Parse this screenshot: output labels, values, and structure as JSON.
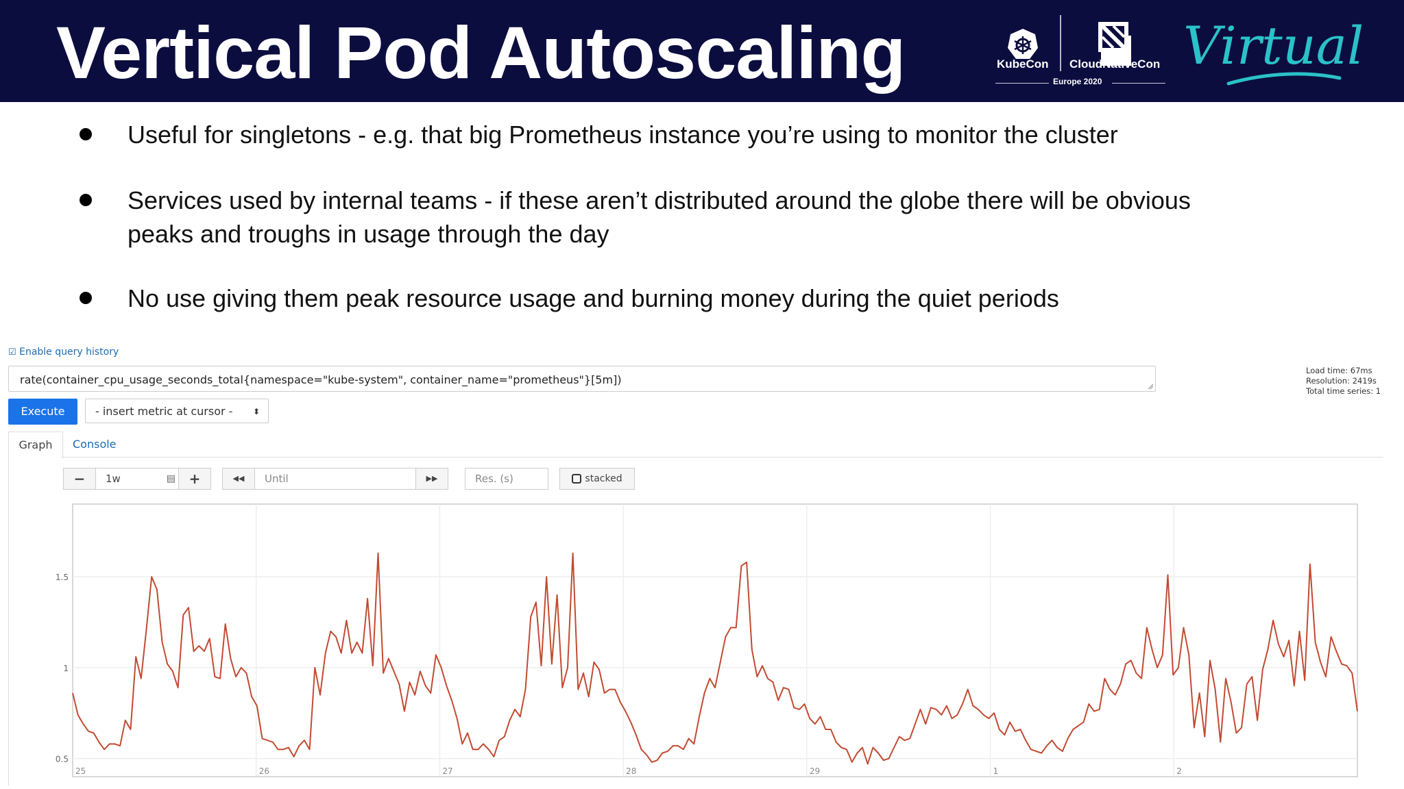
{
  "slide": {
    "title": "Vertical Pod Autoscaling",
    "logos": {
      "kubecon": "KubeCon",
      "cloudnativecon": "CloudNativeCon",
      "event": "Europe 2020",
      "virtual": "Virtual"
    },
    "bullets": [
      "Useful for singletons - e.g. that big Prometheus instance you’re using to monitor the cluster",
      "Services used by internal teams - if these aren’t distributed around the globe there will be obvious peaks and troughs in usage through the day",
      "No use giving them peak resource usage and burning money during the quiet periods"
    ],
    "colors": {
      "header_bg": "#0c0d3f",
      "virtual_text": "#2ac2c8",
      "series": "#c24a32"
    }
  },
  "prometheus": {
    "query_history_label": "Enable query history",
    "query": "rate(container_cpu_usage_seconds_total{namespace=\"kube-system\", container_name=\"prometheus\"}[5m])",
    "execute_label": "Execute",
    "insert_metric_label": "- insert metric at cursor -",
    "stats": [
      "Load time: 67ms",
      "Resolution: 2419s",
      "Total time series: 1"
    ],
    "tabs": [
      "Graph",
      "Console"
    ],
    "controls": {
      "minus": "−",
      "range": "1w",
      "plus": "+",
      "back": "◀◀",
      "until_placeholder": "Until",
      "forward": "▶▶",
      "resolution_placeholder": "Res. (s)",
      "stacked": "stacked"
    }
  },
  "chart_data": {
    "type": "line",
    "x_ticks": [
      "25",
      "26",
      "27",
      "28",
      "29",
      "1",
      "2"
    ],
    "y_ticks": [
      "1.5",
      "1",
      "0.5"
    ],
    "ylim": [
      0.4,
      1.9
    ],
    "xlim": [
      0,
      7
    ],
    "grid": true,
    "series": [
      {
        "color": "#c24a32",
        "values": [
          0.86,
          0.74,
          0.69,
          0.65,
          0.64,
          0.59,
          0.55,
          0.58,
          0.58,
          0.57,
          0.71,
          0.66,
          1.06,
          0.94,
          1.21,
          1.5,
          1.43,
          1.14,
          1.02,
          0.98,
          0.89,
          1.29,
          1.33,
          1.09,
          1.12,
          1.09,
          1.16,
          0.95,
          0.94,
          1.24,
          1.05,
          0.95,
          1.0,
          0.97,
          0.84,
          0.79,
          0.61,
          0.6,
          0.59,
          0.55,
          0.55,
          0.56,
          0.51,
          0.57,
          0.6,
          0.55,
          1.0,
          0.85,
          1.08,
          1.2,
          1.17,
          1.08,
          1.26,
          1.08,
          1.14,
          1.08,
          1.38,
          1.01,
          1.63,
          0.97,
          1.05,
          0.98,
          0.91,
          0.76,
          0.92,
          0.85,
          0.98,
          0.9,
          0.86,
          1.07,
          1.0,
          0.9,
          0.82,
          0.72,
          0.58,
          0.64,
          0.55,
          0.55,
          0.58,
          0.55,
          0.51,
          0.6,
          0.62,
          0.71,
          0.77,
          0.73,
          0.88,
          1.28,
          1.36,
          1.01,
          1.5,
          1.02,
          1.4,
          0.89,
          1.0,
          1.63,
          0.88,
          0.97,
          0.84,
          1.03,
          0.99,
          0.86,
          0.88,
          0.88,
          0.81,
          0.76,
          0.7,
          0.63,
          0.55,
          0.52,
          0.48,
          0.49,
          0.53,
          0.54,
          0.57,
          0.57,
          0.55,
          0.61,
          0.58,
          0.73,
          0.86,
          0.94,
          0.89,
          1.03,
          1.17,
          1.22,
          1.22,
          1.56,
          1.58,
          1.1,
          0.95,
          1.01,
          0.94,
          0.92,
          0.82,
          0.89,
          0.88,
          0.78,
          0.77,
          0.8,
          0.72,
          0.69,
          0.73,
          0.66,
          0.66,
          0.59,
          0.56,
          0.55,
          0.48,
          0.53,
          0.56,
          0.47,
          0.56,
          0.53,
          0.49,
          0.5,
          0.56,
          0.62,
          0.6,
          0.61,
          0.69,
          0.77,
          0.69,
          0.78,
          0.77,
          0.74,
          0.79,
          0.72,
          0.74,
          0.8,
          0.88,
          0.79,
          0.77,
          0.74,
          0.72,
          0.75,
          0.66,
          0.63,
          0.7,
          0.65,
          0.66,
          0.6,
          0.55,
          0.54,
          0.53,
          0.57,
          0.6,
          0.56,
          0.54,
          0.61,
          0.66,
          0.68,
          0.7,
          0.8,
          0.76,
          0.77,
          0.94,
          0.88,
          0.85,
          0.91,
          1.02,
          1.04,
          0.97,
          0.94,
          1.22,
          1.1,
          1.0,
          1.07,
          1.51,
          0.96,
          1.0,
          1.22,
          1.07,
          0.67,
          0.86,
          0.62,
          1.04,
          0.88,
          0.59,
          0.94,
          0.81,
          0.64,
          0.67,
          0.91,
          0.95,
          0.71,
          0.99,
          1.1,
          1.26,
          1.13,
          1.06,
          1.15,
          0.9,
          1.2,
          0.93,
          1.57,
          1.14,
          1.03,
          0.95,
          1.17,
          1.09,
          1.02,
          1.01,
          0.97,
          0.76
        ]
      }
    ]
  }
}
